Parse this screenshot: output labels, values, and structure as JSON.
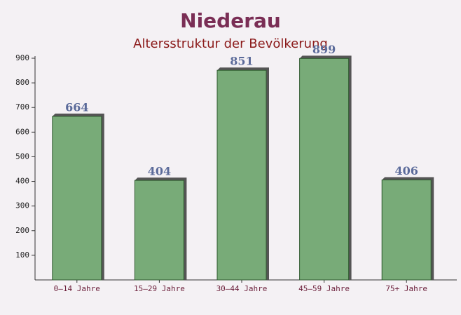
{
  "chart_data": {
    "type": "bar",
    "title": "Niederau",
    "subtitle": "Altersstruktur der Bevölkerung",
    "categories": [
      "0–14 Jahre",
      "15–29 Jahre",
      "30–44 Jahre",
      "45–59 Jahre",
      "75+ Jahre"
    ],
    "values": [
      664,
      404,
      851,
      899,
      406
    ],
    "color": "#6aa36a",
    "ylim": [
      0,
      900
    ],
    "yticks": [
      100,
      200,
      300,
      400,
      500,
      600,
      700,
      800,
      900
    ],
    "grid": false
  }
}
